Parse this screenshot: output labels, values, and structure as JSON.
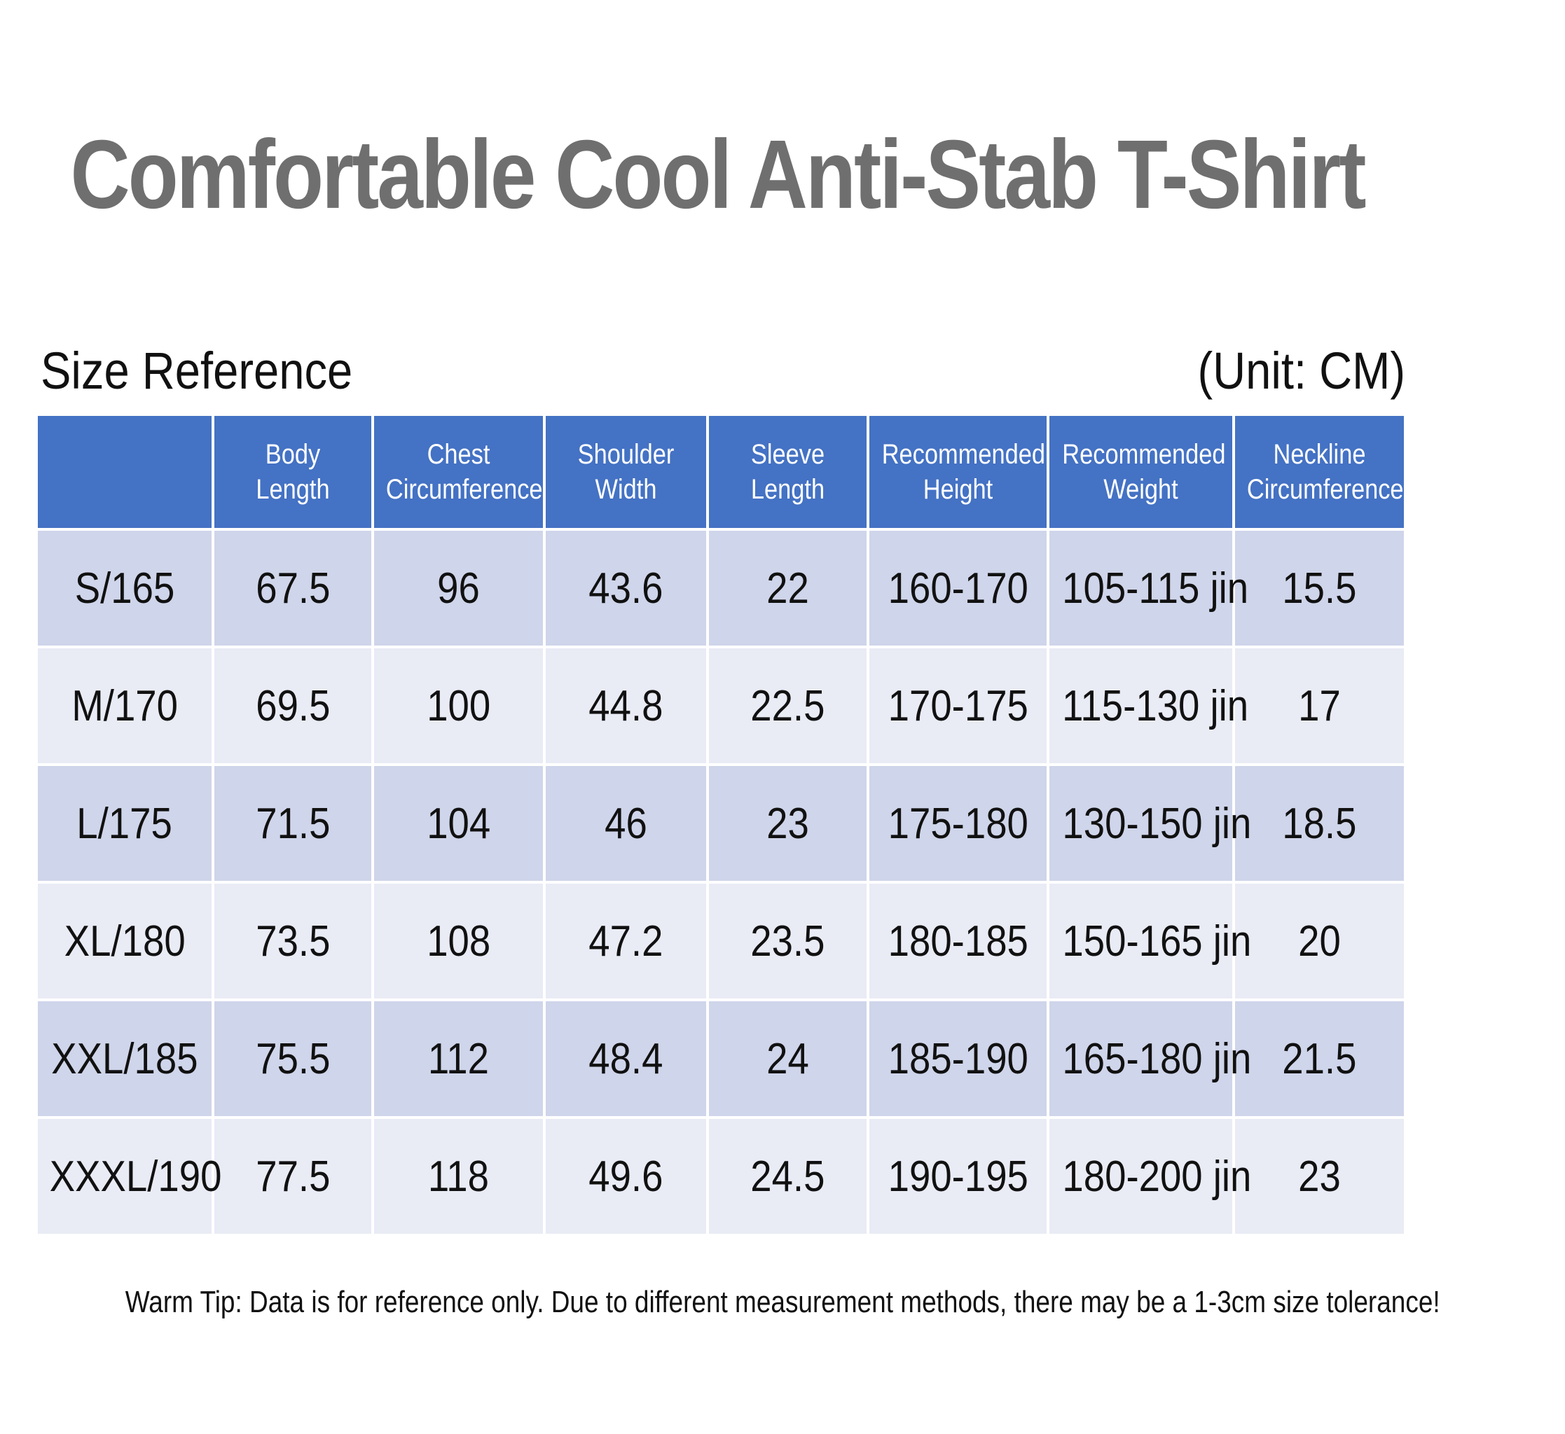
{
  "title": "Comfortable Cool Anti-Stab T-Shirt",
  "section_label": "Size Reference",
  "unit_label": "(Unit: CM)",
  "headers": [
    {
      "line1": "",
      "line2": ""
    },
    {
      "line1": "Body",
      "line2": "Length"
    },
    {
      "line1": "Chest",
      "line2": "Circumference"
    },
    {
      "line1": "Shoulder",
      "line2": "Width"
    },
    {
      "line1": "Sleeve",
      "line2": "Length"
    },
    {
      "line1": "Recommended",
      "line2": "Height"
    },
    {
      "line1": "Recommended",
      "line2": "Weight"
    },
    {
      "line1": "Neckline",
      "line2": "Circumference"
    }
  ],
  "rows": [
    [
      "S/165",
      "67.5",
      "96",
      "43.6",
      "22",
      "160-170",
      "105-115 jin",
      "15.5"
    ],
    [
      "M/170",
      "69.5",
      "100",
      "44.8",
      "22.5",
      "170-175",
      "115-130 jin",
      "17"
    ],
    [
      "L/175",
      "71.5",
      "104",
      "46",
      "23",
      "175-180",
      "130-150 jin",
      "18.5"
    ],
    [
      "XL/180",
      "73.5",
      "108",
      "47.2",
      "23.5",
      "180-185",
      "150-165 jin",
      "20"
    ],
    [
      "XXL/185",
      "75.5",
      "112",
      "48.4",
      "24",
      "185-190",
      "165-180 jin",
      "21.5"
    ],
    [
      "XXXL/190",
      "77.5",
      "118",
      "49.6",
      "24.5",
      "190-195",
      "180-200 jin",
      "23"
    ]
  ],
  "tip": "Warm Tip: Data is for reference only. Due to different measurement methods, there may be a 1-3cm size tolerance!",
  "colors": {
    "header_bg": "#4472c4",
    "row_odd_bg": "#cfd5ea",
    "row_even_bg": "#e9ebf5",
    "title_color": "#6f6f6f"
  }
}
